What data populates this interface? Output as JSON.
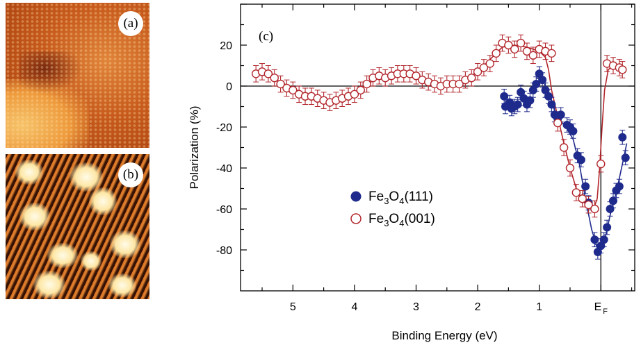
{
  "images": {
    "a": {
      "label": "(a)"
    },
    "b": {
      "label": "(b)"
    }
  },
  "chart_data": {
    "type": "scatter",
    "panel_label": "(c)",
    "xlabel": "Binding Energy (eV)",
    "ylabel": "Polarization (%)",
    "xlim": [
      5.85,
      -0.55
    ],
    "ylim": [
      -100,
      40
    ],
    "x_reversed": true,
    "xticks": [
      {
        "value": 5,
        "label": "5"
      },
      {
        "value": 4,
        "label": "4"
      },
      {
        "value": 3,
        "label": "3"
      },
      {
        "value": 2,
        "label": "2"
      },
      {
        "value": 1,
        "label": "1"
      },
      {
        "value": 0,
        "label": "E",
        "sub": "F"
      }
    ],
    "yticks": [
      20,
      0,
      -20,
      -40,
      -60,
      -80
    ],
    "reference_lines": {
      "y": 0,
      "x": 0
    },
    "legend_position": "center",
    "series": [
      {
        "name": "Fe3O4(111)",
        "name_main": "Fe",
        "name_parts": [
          "3",
          "O",
          "4",
          "(111)"
        ],
        "marker": "filled-circle",
        "color": "#1f2b8c",
        "error": 3.5,
        "points": [
          [
            1.57,
            -5
          ],
          [
            1.55,
            -10
          ],
          [
            1.48,
            -8
          ],
          [
            1.45,
            -11
          ],
          [
            1.4,
            -10
          ],
          [
            1.35,
            -9
          ],
          [
            1.3,
            -3
          ],
          [
            1.25,
            -6
          ],
          [
            1.2,
            -9
          ],
          [
            1.15,
            -7
          ],
          [
            1.1,
            -2
          ],
          [
            1.05,
            1
          ],
          [
            1.0,
            6
          ],
          [
            0.95,
            3
          ],
          [
            0.9,
            -2
          ],
          [
            0.85,
            -5
          ],
          [
            0.8,
            -9
          ],
          [
            0.75,
            -14
          ],
          [
            0.7,
            -16
          ],
          [
            0.65,
            -14
          ],
          [
            0.55,
            -19
          ],
          [
            0.5,
            -20
          ],
          [
            0.45,
            -22
          ],
          [
            0.38,
            -34
          ],
          [
            0.32,
            -36
          ],
          [
            0.25,
            -49
          ],
          [
            0.2,
            -57
          ],
          [
            0.1,
            -75
          ],
          [
            0.05,
            -81
          ],
          [
            0.0,
            -78
          ],
          [
            -0.05,
            -75
          ],
          [
            -0.1,
            -69
          ],
          [
            -0.15,
            -60
          ],
          [
            -0.2,
            -56
          ],
          [
            -0.25,
            -51
          ],
          [
            -0.3,
            -49
          ],
          [
            -0.35,
            -25
          ],
          [
            -0.4,
            -35
          ]
        ],
        "fit": [
          [
            1.05,
            4
          ],
          [
            0.95,
            3
          ],
          [
            0.85,
            -3
          ],
          [
            0.75,
            -12
          ],
          [
            0.65,
            -17
          ],
          [
            0.55,
            -21
          ],
          [
            0.45,
            -26
          ],
          [
            0.35,
            -38
          ],
          [
            0.25,
            -55
          ],
          [
            0.15,
            -70
          ],
          [
            0.05,
            -80
          ],
          [
            0.0,
            -80
          ],
          [
            -0.05,
            -77
          ],
          [
            -0.15,
            -63
          ],
          [
            -0.25,
            -52
          ],
          [
            -0.35,
            -38
          ],
          [
            -0.42,
            -28
          ]
        ]
      },
      {
        "name": "Fe3O4(001)",
        "name_main": "Fe",
        "name_parts": [
          "3",
          "O",
          "4",
          "(001)"
        ],
        "marker": "open-circle",
        "color": "#b2262c",
        "error": 4,
        "points": [
          [
            5.6,
            6
          ],
          [
            5.5,
            7
          ],
          [
            5.4,
            6
          ],
          [
            5.3,
            4
          ],
          [
            5.2,
            1
          ],
          [
            5.1,
            -1
          ],
          [
            5.0,
            -2
          ],
          [
            4.9,
            -4
          ],
          [
            4.8,
            -5
          ],
          [
            4.7,
            -5
          ],
          [
            4.6,
            -6
          ],
          [
            4.5,
            -7
          ],
          [
            4.4,
            -8
          ],
          [
            4.3,
            -7
          ],
          [
            4.2,
            -6
          ],
          [
            4.1,
            -5
          ],
          [
            4.0,
            -4
          ],
          [
            3.9,
            -2
          ],
          [
            3.8,
            1
          ],
          [
            3.7,
            4
          ],
          [
            3.6,
            5
          ],
          [
            3.5,
            4
          ],
          [
            3.4,
            5
          ],
          [
            3.3,
            6
          ],
          [
            3.2,
            6
          ],
          [
            3.1,
            6
          ],
          [
            3.0,
            5
          ],
          [
            2.9,
            3
          ],
          [
            2.8,
            2
          ],
          [
            2.7,
            1
          ],
          [
            2.6,
            0
          ],
          [
            2.5,
            1
          ],
          [
            2.4,
            1
          ],
          [
            2.3,
            1
          ],
          [
            2.2,
            3
          ],
          [
            2.1,
            4
          ],
          [
            2.0,
            7
          ],
          [
            1.9,
            9
          ],
          [
            1.8,
            11
          ],
          [
            1.7,
            16
          ],
          [
            1.6,
            21
          ],
          [
            1.5,
            20
          ],
          [
            1.4,
            18
          ],
          [
            1.3,
            21
          ],
          [
            1.2,
            17
          ],
          [
            1.1,
            15
          ],
          [
            1.0,
            18
          ],
          [
            0.9,
            17
          ],
          [
            0.8,
            16
          ],
          [
            0.7,
            -18
          ],
          [
            0.6,
            -30
          ],
          [
            0.5,
            -40
          ],
          [
            0.4,
            -52
          ],
          [
            0.3,
            -55
          ],
          [
            0.2,
            -58
          ],
          [
            0.1,
            -60
          ],
          [
            0.0,
            -38
          ],
          [
            -0.1,
            11
          ],
          [
            -0.2,
            10
          ],
          [
            -0.3,
            9
          ],
          [
            -0.35,
            8
          ]
        ],
        "fit": [
          [
            5.6,
            6
          ],
          [
            5.4,
            5
          ],
          [
            5.2,
            2
          ],
          [
            5.0,
            -1
          ],
          [
            4.8,
            -4
          ],
          [
            4.6,
            -6
          ],
          [
            4.4,
            -7
          ],
          [
            4.2,
            -6
          ],
          [
            4.0,
            -3
          ],
          [
            3.8,
            1
          ],
          [
            3.6,
            4
          ],
          [
            3.4,
            5
          ],
          [
            3.2,
            5
          ],
          [
            3.0,
            4
          ],
          [
            2.8,
            2
          ],
          [
            2.6,
            1
          ],
          [
            2.4,
            1
          ],
          [
            2.2,
            3
          ],
          [
            2.0,
            7
          ],
          [
            1.8,
            13
          ],
          [
            1.6,
            19
          ],
          [
            1.4,
            20
          ],
          [
            1.2,
            19
          ],
          [
            1.0,
            17
          ],
          [
            0.9,
            14
          ],
          [
            0.85,
            8
          ],
          [
            0.8,
            -2
          ],
          [
            0.7,
            -15
          ],
          [
            0.6,
            -28
          ],
          [
            0.5,
            -40
          ],
          [
            0.4,
            -50
          ],
          [
            0.3,
            -56
          ],
          [
            0.2,
            -59
          ],
          [
            0.12,
            -60
          ],
          [
            0.06,
            -55
          ],
          [
            0.02,
            -40
          ],
          [
            -0.02,
            -20
          ],
          [
            -0.06,
            -2
          ],
          [
            -0.12,
            8
          ],
          [
            -0.2,
            10
          ],
          [
            -0.35,
            8
          ]
        ]
      }
    ]
  }
}
